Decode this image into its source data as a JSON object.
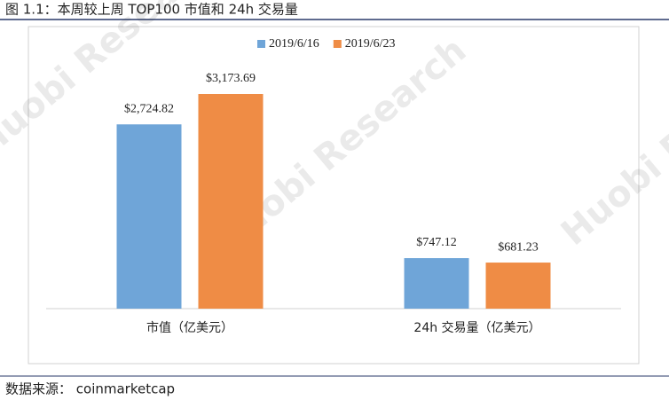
{
  "chart_data": {
    "type": "bar",
    "title": "图 1.1：本周较上周 TOP100 市值和 24h 交易量",
    "source": "数据来源： coinmarketcap",
    "watermark": "Huobi Research",
    "categories": [
      "市值（亿美元）",
      "24h 交易量（亿美元）"
    ],
    "series": [
      {
        "name": "2019/6/16",
        "color": "#6fa5d8",
        "values": [
          2724.82,
          747.12
        ],
        "value_labels": [
          "$2,724.82",
          "$747.12"
        ]
      },
      {
        "name": "2019/6/23",
        "color": "#ef8c45",
        "values": [
          3173.69,
          681.23
        ],
        "value_labels": [
          "$3,173.69",
          "$681.23"
        ]
      }
    ],
    "legend": "top"
  }
}
